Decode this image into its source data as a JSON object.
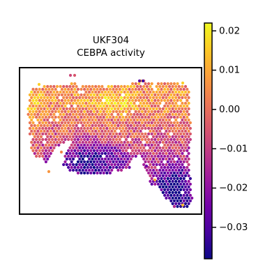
{
  "chart_data": {
    "type": "scatter",
    "title_lines": [
      "UKF304",
      "CEBPA activity"
    ],
    "xlabel": "",
    "ylabel": "",
    "grid": false,
    "colormap": "plasma",
    "colormap_stops": [
      "#0d0887",
      "#46039f",
      "#7201a8",
      "#9c179e",
      "#bd3786",
      "#d8576b",
      "#ed7953",
      "#fb9f3a",
      "#fdca26",
      "#f0f921"
    ],
    "colorbar": {
      "vmin": -0.038,
      "vmax": 0.022,
      "ticks": [
        0.02,
        0.01,
        0.0,
        -0.01,
        -0.02,
        -0.03
      ],
      "tick_labels": [
        "0.02",
        "0.01",
        "0.00",
        "−0.01",
        "−0.02",
        "−0.03"
      ]
    },
    "point_shape": "hexagonal spots",
    "value_pattern": "higher activity across the upper band of the tissue, lowest activity in the lower-left lobe and lower-right extension"
  }
}
